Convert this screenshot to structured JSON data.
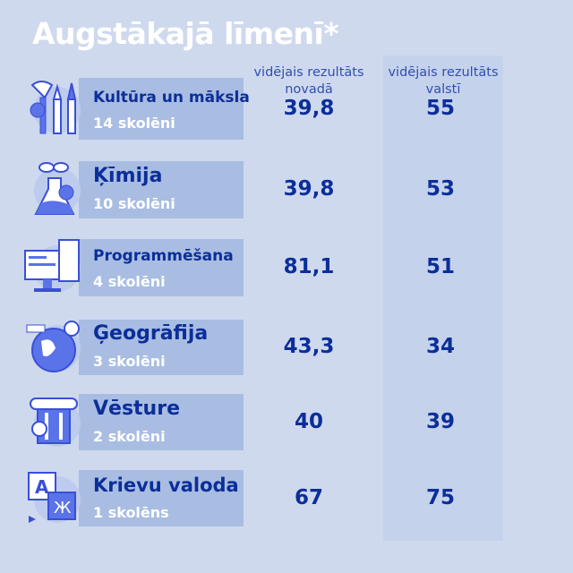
{
  "title": "Augstākajā līmenī*",
  "columns": {
    "novada": "vidējais rezultāts novadā",
    "valsti": "vidējais rezultāts valstī"
  },
  "colors": {
    "background": "#cfd9ee",
    "label_box": "#a9bde2",
    "column": "#c5d2ec",
    "text": "#0b2e99"
  },
  "chart_data": {
    "type": "table",
    "title": "Augstākajā līmenī*",
    "headers": [
      "",
      "vidējais rezultāts novadā",
      "vidējais rezultāts valstī"
    ],
    "rows": [
      {
        "subject": "Kultūra un māksla",
        "students": "14 skolēni",
        "novada": "39,8",
        "valsti": "55",
        "icon": "art-brushes-icon"
      },
      {
        "subject": "Ķīmija",
        "students": "10 skolēni",
        "novada": "39,8",
        "valsti": "53",
        "icon": "chemistry-flask-icon"
      },
      {
        "subject": "Programmēšana",
        "students": "4 skolēni",
        "novada": "81,1",
        "valsti": "51",
        "icon": "computer-code-icon"
      },
      {
        "subject": "Ģeogrāfija",
        "students": "3 skolēni",
        "novada": "43,3",
        "valsti": "34",
        "icon": "globe-icon"
      },
      {
        "subject": "Vēsture",
        "students": "2 skolēni",
        "novada": "40",
        "valsti": "39",
        "icon": "column-pillar-icon"
      },
      {
        "subject": "Krievu valoda",
        "students": "1 skolēns",
        "novada": "67",
        "valsti": "75",
        "icon": "language-translate-icon"
      }
    ]
  }
}
